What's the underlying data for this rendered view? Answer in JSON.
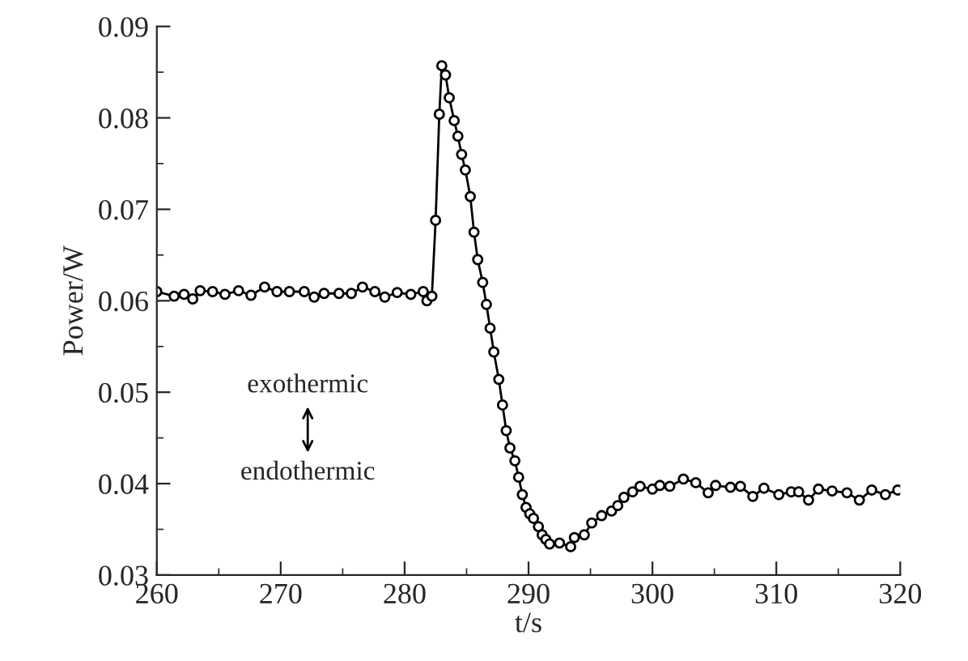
{
  "chart_data": {
    "type": "line",
    "xlabel": "t/s",
    "ylabel": "Power/W",
    "xlim": [
      260,
      320
    ],
    "xticks": [
      260,
      270,
      280,
      290,
      300,
      310,
      320
    ],
    "ylim": [
      0.03,
      0.09
    ],
    "yticks": [
      0.03,
      0.04,
      0.05,
      0.06,
      0.07,
      0.08,
      0.09
    ],
    "grid": false,
    "legend": false,
    "marker": "circle",
    "line_style": "solid",
    "annotations": [
      "exothermic",
      "endothermic"
    ],
    "series": [
      {
        "color": "#000000",
        "x": [
          260.0,
          261.4,
          262.2,
          262.9,
          263.5,
          264.5,
          265.5,
          266.6,
          267.6,
          268.7,
          269.7,
          270.7,
          271.9,
          272.7,
          273.5,
          274.7,
          275.7,
          276.6,
          277.6,
          278.4,
          279.4,
          280.5,
          281.5,
          281.8,
          282.2,
          282.5,
          282.8,
          283.0,
          283.3,
          283.6,
          284.0,
          284.3,
          284.6,
          284.9,
          285.3,
          285.6,
          285.9,
          286.3,
          286.6,
          286.9,
          287.2,
          287.6,
          287.9,
          288.2,
          288.5,
          288.9,
          289.2,
          289.5,
          289.8,
          290.1,
          290.4,
          290.8,
          291.1,
          291.4,
          291.7,
          292.5,
          293.4,
          293.7,
          294.5,
          295.1,
          295.9,
          296.7,
          297.2,
          297.7,
          298.4,
          299.0,
          300.0,
          300.6,
          301.4,
          302.5,
          303.5,
          304.5,
          305.1,
          306.3,
          307.1,
          308.1,
          309.0,
          310.2,
          311.2,
          311.8,
          312.6,
          313.4,
          314.5,
          315.7,
          316.7,
          317.7,
          318.8,
          319.8
        ],
        "values": [
          0.061,
          0.0605,
          0.0607,
          0.0602,
          0.0611,
          0.061,
          0.0607,
          0.0611,
          0.0606,
          0.0615,
          0.061,
          0.061,
          0.061,
          0.0604,
          0.0608,
          0.0608,
          0.0608,
          0.0615,
          0.061,
          0.0604,
          0.0609,
          0.0607,
          0.061,
          0.06,
          0.0605,
          0.0688,
          0.0804,
          0.0857,
          0.0847,
          0.0822,
          0.0797,
          0.078,
          0.076,
          0.0743,
          0.0714,
          0.0675,
          0.0645,
          0.062,
          0.0596,
          0.057,
          0.0544,
          0.0514,
          0.0486,
          0.0458,
          0.0439,
          0.0425,
          0.0407,
          0.0388,
          0.0374,
          0.0367,
          0.0362,
          0.0353,
          0.0344,
          0.0339,
          0.0334,
          0.0335,
          0.0331,
          0.0341,
          0.0344,
          0.0357,
          0.0365,
          0.037,
          0.0376,
          0.0385,
          0.0391,
          0.0397,
          0.0394,
          0.0398,
          0.0397,
          0.0405,
          0.0401,
          0.039,
          0.0398,
          0.0396,
          0.0397,
          0.0386,
          0.0395,
          0.0388,
          0.0391,
          0.0391,
          0.0382,
          0.0394,
          0.0392,
          0.039,
          0.0382,
          0.0393,
          0.0388,
          0.0393
        ]
      }
    ]
  }
}
